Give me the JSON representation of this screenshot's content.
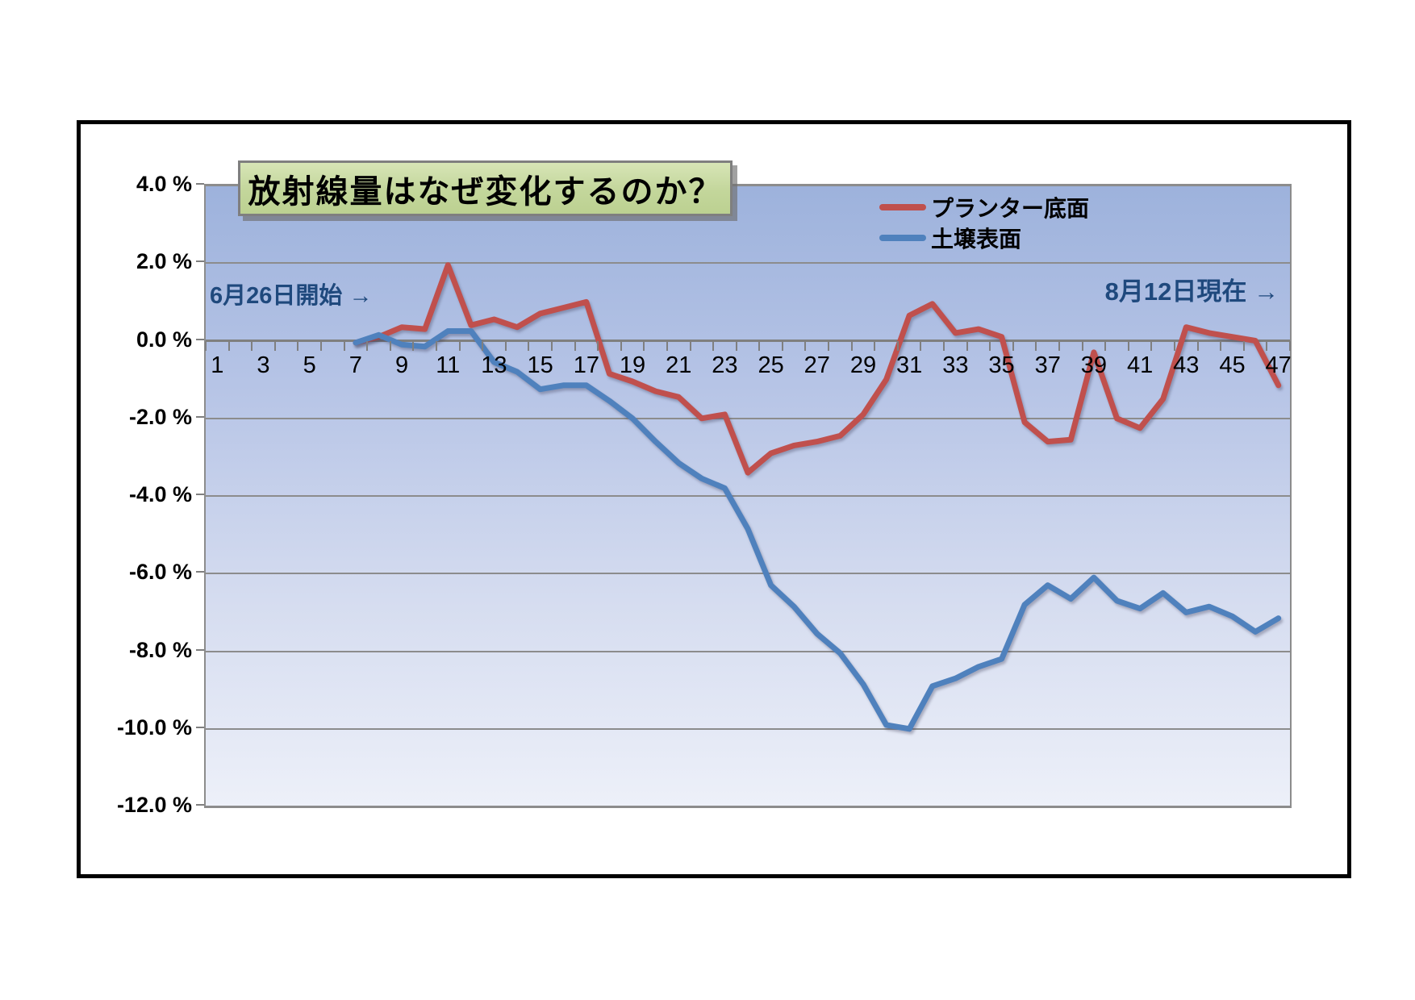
{
  "title": "放射線量はなぜ変化するのか？",
  "annotations": {
    "start": "6月26日開始 →",
    "current": "8月12日現在 →",
    "color": "#1f497d"
  },
  "legend": [
    {
      "label": "プランター底面",
      "color": "#c0504d"
    },
    {
      "label": "土壌表面",
      "color": "#4f81bd"
    }
  ],
  "chart_data": {
    "type": "line",
    "title": "放射線量はなぜ変化するのか？",
    "xlabel": "",
    "ylabel": "",
    "grid": true,
    "legend_position": "top-right-inside",
    "x_range": {
      "min": 1,
      "max": 47,
      "minor_tick_every": 1
    },
    "ylim": [
      -12,
      4
    ],
    "y_ticks": [
      {
        "value": 4,
        "label": "4.0 %"
      },
      {
        "value": 2,
        "label": "2.0 %"
      },
      {
        "value": 0,
        "label": "0.0 %"
      },
      {
        "value": -2,
        "label": "-2.0 %"
      },
      {
        "value": -4,
        "label": "-4.0 %"
      },
      {
        "value": -6,
        "label": "-6.0 %"
      },
      {
        "value": -8,
        "label": "-8.0 %"
      },
      {
        "value": -10,
        "label": "-10.0 %"
      },
      {
        "value": -12,
        "label": "-12.0 %"
      }
    ],
    "x_tick_labels": [
      1,
      3,
      5,
      7,
      9,
      11,
      13,
      15,
      17,
      19,
      21,
      23,
      25,
      27,
      29,
      31,
      33,
      35,
      37,
      39,
      41,
      43,
      45,
      47
    ],
    "x": [
      7,
      8,
      9,
      10,
      11,
      12,
      13,
      14,
      15,
      16,
      17,
      18,
      19,
      20,
      21,
      22,
      23,
      24,
      25,
      26,
      27,
      28,
      29,
      30,
      31,
      32,
      33,
      34,
      35,
      36,
      37,
      38,
      39,
      40,
      41,
      42,
      43,
      44,
      45,
      46,
      47
    ],
    "series": [
      {
        "name": "プランター底面",
        "color": "#c0504d",
        "values": [
          -0.05,
          0.1,
          0.35,
          0.3,
          1.95,
          0.4,
          0.55,
          0.35,
          0.7,
          0.85,
          1.0,
          -0.85,
          -1.05,
          -1.3,
          -1.45,
          -2.0,
          -1.9,
          -3.4,
          -2.9,
          -2.7,
          -2.6,
          -2.45,
          -1.9,
          -1.0,
          0.65,
          0.95,
          0.2,
          0.3,
          0.1,
          -2.1,
          -2.6,
          -2.55,
          -0.3,
          -2.0,
          -2.25,
          -1.5,
          0.35,
          0.2,
          0.1,
          0.0,
          -1.15
        ]
      },
      {
        "name": "土壌表面",
        "color": "#4f81bd",
        "values": [
          -0.05,
          0.15,
          -0.1,
          -0.15,
          0.25,
          0.25,
          -0.55,
          -0.8,
          -1.25,
          -1.15,
          -1.15,
          -1.55,
          -2.0,
          -2.6,
          -3.15,
          -3.55,
          -3.8,
          -4.85,
          -6.3,
          -6.85,
          -7.55,
          -8.05,
          -8.85,
          -9.9,
          -10.0,
          -8.9,
          -8.7,
          -8.4,
          -8.2,
          -6.8,
          -6.3,
          -6.65,
          -6.1,
          -6.7,
          -6.9,
          -6.5,
          -7.0,
          -6.85,
          -7.1,
          -7.5,
          -7.15
        ]
      }
    ]
  }
}
